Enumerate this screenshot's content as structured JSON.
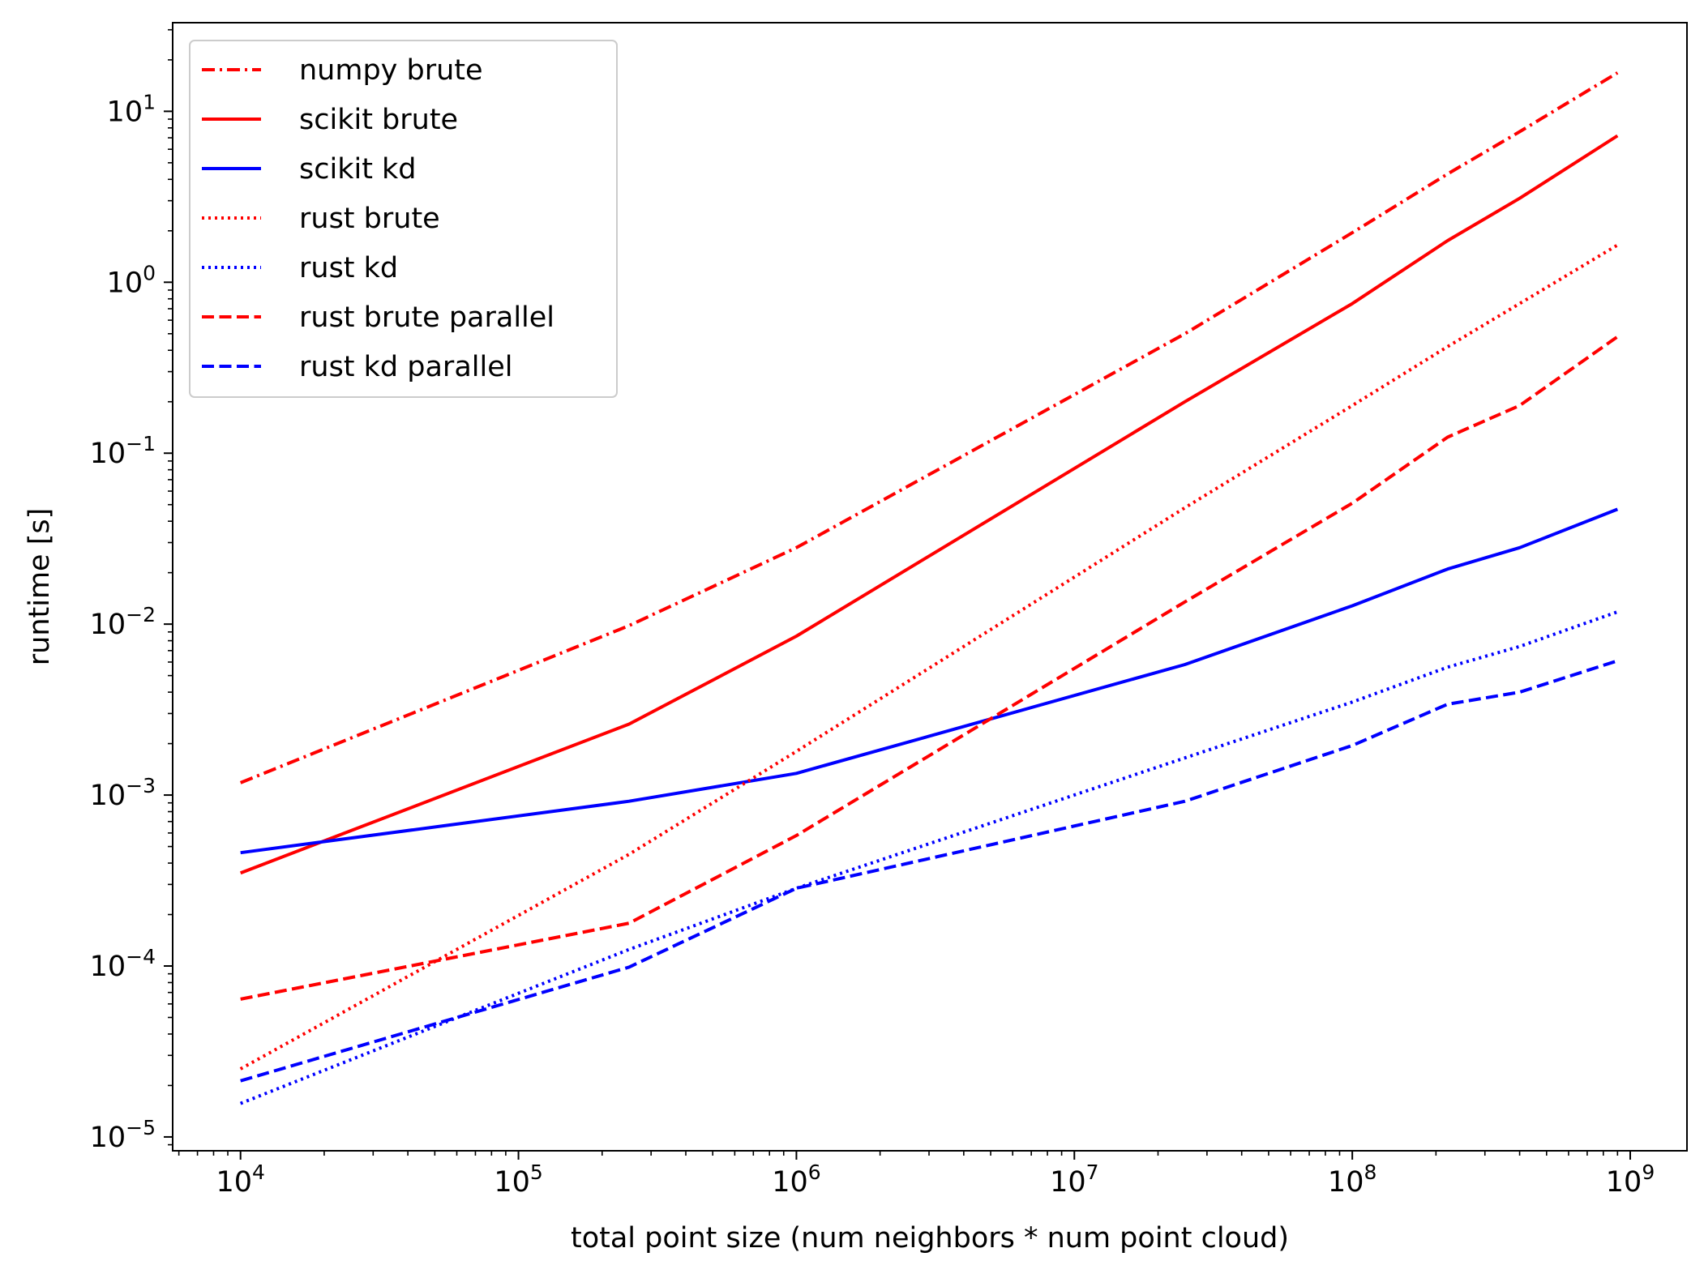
{
  "chart_data": {
    "type": "line",
    "title": "",
    "xlabel": "total point size (num neighbors * num point cloud)",
    "ylabel": "runtime [s]",
    "xscale": "log",
    "yscale": "log",
    "xlim": [
      5700,
      1600000000
    ],
    "ylim": [
      8.3e-06,
      33
    ],
    "grid": false,
    "legend_position": "top-left",
    "x_ticks": [
      {
        "value": 10000,
        "base": "10",
        "exp": "4"
      },
      {
        "value": 100000,
        "base": "10",
        "exp": "5"
      },
      {
        "value": 1000000,
        "base": "10",
        "exp": "6"
      },
      {
        "value": 10000000,
        "base": "10",
        "exp": "7"
      },
      {
        "value": 100000000,
        "base": "10",
        "exp": "8"
      },
      {
        "value": 1000000000,
        "base": "10",
        "exp": "9"
      }
    ],
    "y_ticks": [
      {
        "value": 1e-05,
        "base": "10",
        "exp": "−5"
      },
      {
        "value": 0.0001,
        "base": "10",
        "exp": "−4"
      },
      {
        "value": 0.001,
        "base": "10",
        "exp": "−3"
      },
      {
        "value": 0.01,
        "base": "10",
        "exp": "−2"
      },
      {
        "value": 0.1,
        "base": "10",
        "exp": "−1"
      },
      {
        "value": 1,
        "base": "10",
        "exp": "0"
      },
      {
        "value": 10,
        "base": "10",
        "exp": "1"
      }
    ],
    "series": [
      {
        "name": "numpy brute",
        "color": "#ff0000",
        "dash": "dashdot",
        "points": [
          [
            10000,
            0.00118
          ],
          [
            250000,
            0.0098
          ],
          [
            1000000,
            0.028
          ],
          [
            25000000,
            0.5
          ],
          [
            100000000,
            1.95
          ],
          [
            220000000,
            4.3
          ],
          [
            400000000,
            7.6
          ],
          [
            900000000,
            16.8
          ]
        ]
      },
      {
        "name": "scikit brute",
        "color": "#ff0000",
        "dash": "solid",
        "points": [
          [
            10000,
            0.00035
          ],
          [
            250000,
            0.0026
          ],
          [
            1000000,
            0.0085
          ],
          [
            25000000,
            0.2
          ],
          [
            100000000,
            0.75
          ],
          [
            220000000,
            1.75
          ],
          [
            400000000,
            3.1
          ],
          [
            900000000,
            7.2
          ]
        ]
      },
      {
        "name": "scikit kd",
        "color": "#0000ff",
        "dash": "solid",
        "points": [
          [
            10000,
            0.00046
          ],
          [
            250000,
            0.00092
          ],
          [
            1000000,
            0.00134
          ],
          [
            25000000,
            0.0058
          ],
          [
            100000000,
            0.0128
          ],
          [
            220000000,
            0.021
          ],
          [
            400000000,
            0.028
          ],
          [
            900000000,
            0.047
          ]
        ]
      },
      {
        "name": "rust brute",
        "color": "#ff0000",
        "dash": "dotted",
        "points": [
          [
            10000,
            2.5e-05
          ],
          [
            250000,
            0.00045
          ],
          [
            1000000,
            0.0018
          ],
          [
            25000000,
            0.048
          ],
          [
            100000000,
            0.19
          ],
          [
            220000000,
            0.42
          ],
          [
            400000000,
            0.75
          ],
          [
            900000000,
            1.65
          ]
        ]
      },
      {
        "name": "rust kd",
        "color": "#0000ff",
        "dash": "dotted",
        "points": [
          [
            10000,
            1.57e-05
          ],
          [
            250000,
            0.000125
          ],
          [
            1000000,
            0.000285
          ],
          [
            25000000,
            0.00165
          ],
          [
            100000000,
            0.0035
          ],
          [
            220000000,
            0.0056
          ],
          [
            400000000,
            0.0074
          ],
          [
            900000000,
            0.0118
          ]
        ]
      },
      {
        "name": "rust brute parallel",
        "color": "#ff0000",
        "dash": "dashed",
        "points": [
          [
            10000,
            6.4e-05
          ],
          [
            250000,
            0.000178
          ],
          [
            1000000,
            0.00058
          ],
          [
            25000000,
            0.0135
          ],
          [
            100000000,
            0.051
          ],
          [
            220000000,
            0.124
          ],
          [
            400000000,
            0.19
          ],
          [
            900000000,
            0.48
          ]
        ]
      },
      {
        "name": "rust kd parallel",
        "color": "#0000ff",
        "dash": "dashed",
        "points": [
          [
            10000,
            2.13e-05
          ],
          [
            250000,
            9.85e-05
          ],
          [
            1000000,
            0.000285
          ],
          [
            25000000,
            0.00092
          ],
          [
            100000000,
            0.00195
          ],
          [
            220000000,
            0.0034
          ],
          [
            400000000,
            0.004
          ],
          [
            900000000,
            0.0061
          ]
        ]
      }
    ]
  }
}
